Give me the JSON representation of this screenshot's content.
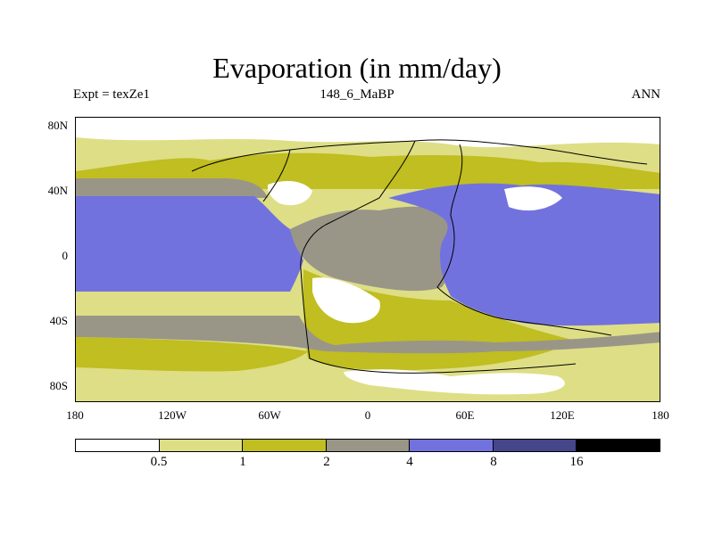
{
  "title": "Evaporation (in mm/day)",
  "left_string": "Expt = texZe1",
  "center_string": "148_6_MaBP",
  "right_string": "ANN",
  "lat_labels": [
    "80N",
    "40N",
    "0",
    "40S",
    "80S"
  ],
  "lon_labels": [
    "180",
    "120W",
    "60W",
    "0",
    "60E",
    "120E",
    "180"
  ],
  "colorbar": {
    "levels": [
      "0.5",
      "1",
      "2",
      "4",
      "8",
      "16"
    ],
    "colors": [
      "#ffffff",
      "#dede86",
      "#c0be20",
      "#999688",
      "#7272de",
      "#46468a",
      "#000000"
    ]
  },
  "chart_data": {
    "type": "map-contour",
    "title": "Evaporation (in mm/day)",
    "variable": "Evaporation",
    "units": "mm/day",
    "experiment": "texZe1",
    "period": "148_6_MaBP",
    "season": "ANN",
    "lon_range": [
      -180,
      180
    ],
    "lat_range": [
      -90,
      90
    ],
    "contour_levels": [
      0.5,
      1,
      2,
      4,
      8,
      16
    ],
    "regions": [
      {
        "name": "north-polar",
        "lon": [
          -180,
          180
        ],
        "lat": [
          62,
          90
        ],
        "band": "0-0.5"
      },
      {
        "name": "north-highlat",
        "lon": [
          -180,
          180
        ],
        "lat": [
          35,
          62
        ],
        "band": "0.5-1"
      },
      {
        "name": "north-ocean-grey",
        "lon": [
          -180,
          -85
        ],
        "lat": [
          22,
          40
        ],
        "band": "2-4"
      },
      {
        "name": "pacific-tropical",
        "lon": [
          -180,
          -45
        ],
        "lat": [
          -28,
          28
        ],
        "band": "4-8"
      },
      {
        "name": "tethys-ocean",
        "lon": [
          15,
          180
        ],
        "lat": [
          -45,
          36
        ],
        "band": "4-8"
      },
      {
        "name": "pangaea-interior",
        "lon": [
          -45,
          50
        ],
        "lat": [
          -10,
          28
        ],
        "band": "2-4"
      },
      {
        "name": "southern-desert",
        "lon": [
          -35,
          5
        ],
        "lat": [
          -48,
          -10
        ],
        "band": "0-0.5"
      },
      {
        "name": "southern-ocean-grey",
        "lon": [
          -180,
          180
        ],
        "lat": [
          -50,
          -36
        ],
        "band": "2-4"
      },
      {
        "name": "south-highlat",
        "lon": [
          -180,
          180
        ],
        "lat": [
          -90,
          -48
        ],
        "band": "0.5-1"
      }
    ]
  }
}
